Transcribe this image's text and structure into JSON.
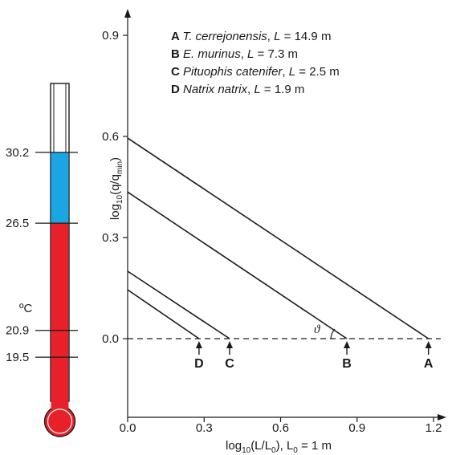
{
  "chart_data": {
    "type": "line",
    "xlabel": "log10(L/L0), L0 = 1 m",
    "ylabel": "log10(q/qmin)",
    "xlim": [
      0,
      1.2
    ],
    "ylim": [
      -0.2,
      0.95
    ],
    "x_ticks": [
      "0.0",
      "0.3",
      "0.6",
      "0.9",
      "1.2"
    ],
    "y_ticks": [
      "0.0",
      "0.3",
      "0.6",
      "0.9"
    ],
    "series": [
      {
        "name": "T. cerrejonensis, L = 14.9 m",
        "x": [
          0.0,
          1.18
        ],
        "y": [
          0.595,
          0.0
        ]
      },
      {
        "name": "E. murinus, L = 7.3 m",
        "x": [
          0.0,
          0.86
        ],
        "y": [
          0.435,
          0.0
        ]
      },
      {
        "name": "Pituophis catenifer, L = 2.5 m",
        "x": [
          0.0,
          0.4
        ],
        "y": [
          0.2,
          0.0
        ]
      },
      {
        "name": "Natrix natrix, L = 1.9 m",
        "x": [
          0.0,
          0.28
        ],
        "y": [
          0.145,
          0.0
        ]
      }
    ],
    "reference_line": {
      "y": 0.0,
      "style": "dashed"
    },
    "markers": [
      {
        "label": "A",
        "x": 1.18
      },
      {
        "label": "B",
        "x": 0.86
      },
      {
        "label": "C",
        "x": 0.4
      },
      {
        "label": "D",
        "x": 0.28
      }
    ],
    "legend": [
      {
        "key": "A",
        "species": "T. cerrejonensis",
        "sep": ", ",
        "l": "L",
        "length": " = 14.9 m"
      },
      {
        "key": "B",
        "species": "E. murinus",
        "sep": ", ",
        "l": "L",
        "length": " = 7.3 m"
      },
      {
        "key": "C",
        "species": "Pituophis catenifer",
        "sep": ", ",
        "l": "L",
        "length": " = 2.5 m"
      },
      {
        "key": "D",
        "species": "Natrix natrix",
        "sep": ", ",
        "l": "L",
        "length": " = 1.9 m"
      }
    ],
    "angle_label": "ϑ",
    "legend_position": "top-right",
    "grid": false
  },
  "thermometer": {
    "min": 17.2,
    "max": 33.8,
    "ticks": [
      {
        "label": "30.2",
        "value": 30.2
      },
      {
        "label": "26.5",
        "value": 26.5
      },
      {
        "label": "20.9",
        "value": 20.9
      },
      {
        "label": "19.5",
        "value": 19.5
      }
    ],
    "unit": "ºC",
    "red_top": 26.5,
    "blue_top": 30.2,
    "colors": {
      "red": "#e8202a",
      "blue": "#1aa6e2",
      "outline": "#1a1a1a"
    }
  },
  "labels": {
    "ylabel_main": "log",
    "ylabel_sub": "10",
    "ylabel_q": "(q/q",
    "ylabel_min": "min",
    "ylabel_close": ")",
    "xlabel_main": "log",
    "xlabel_sub": "10",
    "xlabel_L": "(L/L",
    "xlabel_zero": "0",
    "xlabel_rest": "), L",
    "xlabel_zero2": "0",
    "xlabel_tail": " = 1 m"
  }
}
